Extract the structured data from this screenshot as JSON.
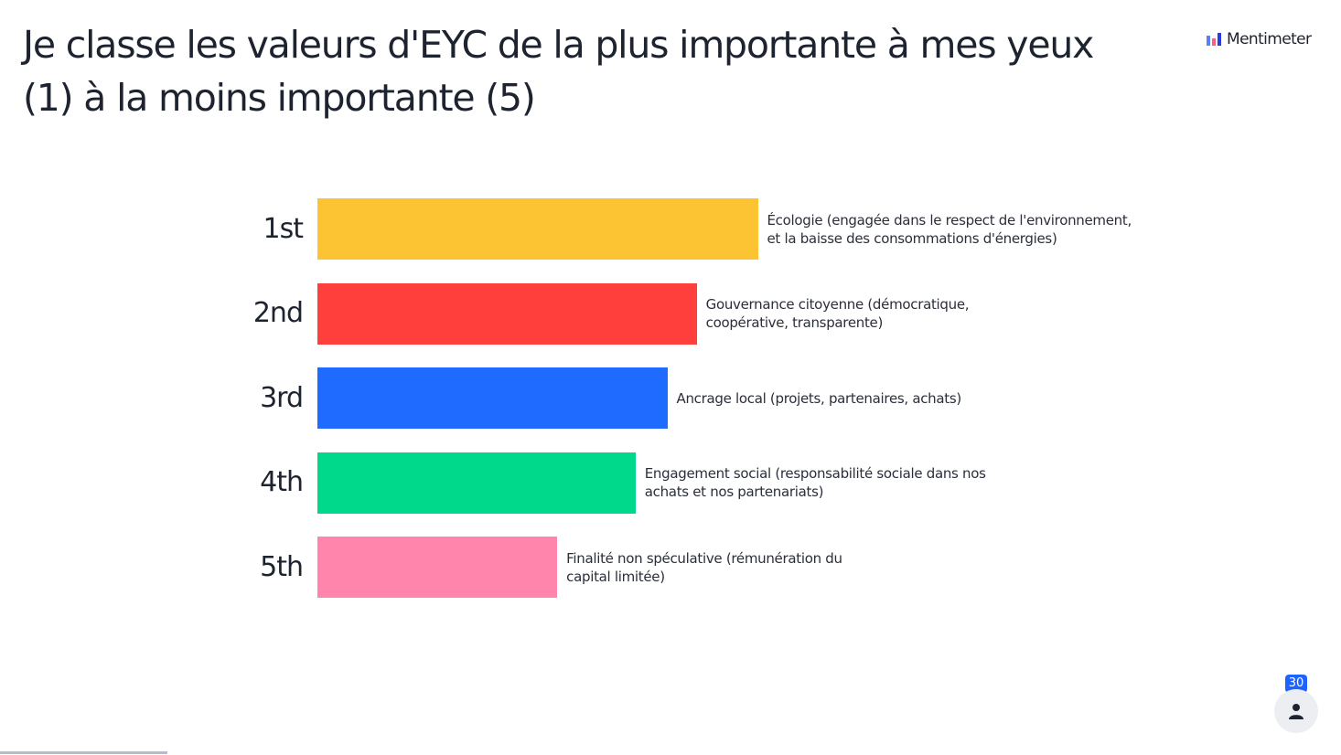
{
  "title": "Je classe les valeurs d'EYC de la plus importante à mes yeux (1) à la moins importante (5)",
  "brand": {
    "name": "Mentimeter",
    "logo_icon": "mentimeter-logo-icon"
  },
  "participants": {
    "count": "30",
    "icon": "person-icon"
  },
  "colors": {
    "text": "#1e2330",
    "badge": "#1e63ff"
  },
  "chart_data": {
    "type": "bar",
    "orientation": "horizontal",
    "title": "",
    "categories": [
      "1st",
      "2nd",
      "3rd",
      "4th",
      "5th"
    ],
    "series": [
      {
        "values": [
          90,
          77.5,
          71.5,
          65,
          49
        ],
        "labels": [
          "Écologie (engagée dans le respect de l'environnement, et la baisse des consommations d'énergies)",
          "Gouvernance citoyenne (démocratique, coopérative, transparente)",
          "Ancrage local (projets, partenaires, achats)",
          "Engagement social (responsabilité sociale dans nos achats et nos partenariats)",
          "Finalité non spéculative (rémunération du capital limitée)"
        ],
        "colors": [
          "#fcc332",
          "#ff3f3b",
          "#1f6bff",
          "#00d98b",
          "#ff85ac"
        ]
      }
    ],
    "xlim": [
      0,
      100
    ],
    "grid": false,
    "legend": "none"
  }
}
